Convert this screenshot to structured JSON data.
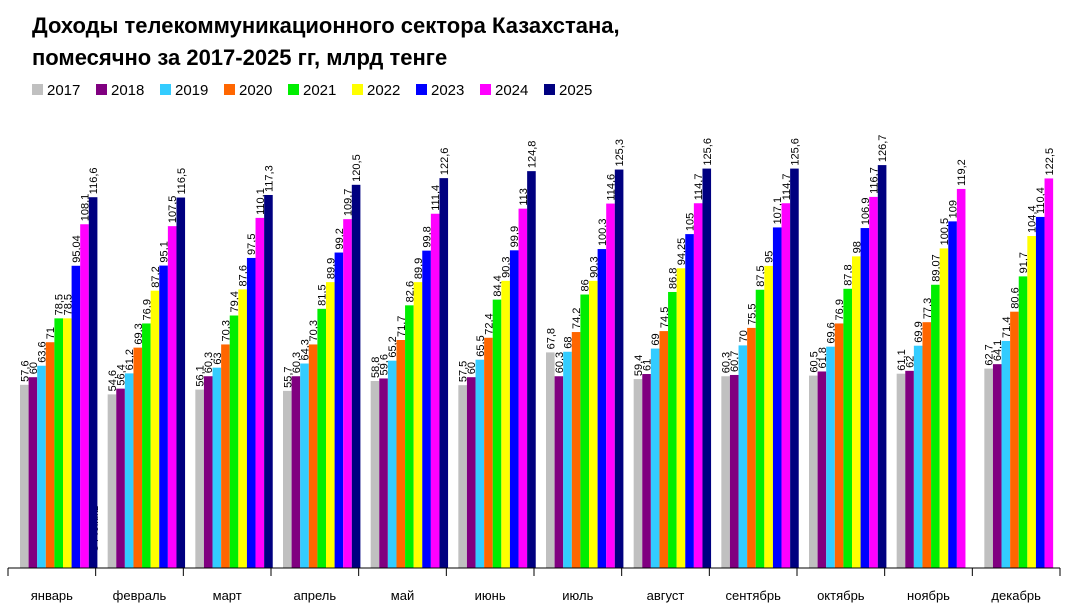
{
  "chart_data": {
    "type": "bar",
    "title": [
      "Доходы телекоммуникационного сектора Казахстана,",
      "помесячно за 2017-2025 гг, млрд тенге"
    ],
    "watermark": "© Profit.kz",
    "categories": [
      "январь",
      "февраль",
      "март",
      "апрель",
      "май",
      "июнь",
      "июль",
      "август",
      "сентябрь",
      "октябрь",
      "ноябрь",
      "декабрь"
    ],
    "series": [
      {
        "name": "2017",
        "color": "#c0c0c0",
        "values": [
          57.6,
          54.6,
          56.1,
          55.7,
          58.8,
          57.5,
          67.8,
          59.4,
          60.3,
          60.5,
          61.1,
          62.7
        ],
        "value_labels": [
          "57,6",
          "54,6",
          "56,1",
          "55,7",
          "58,8",
          "57,5",
          "67,8",
          "59,4",
          "60,3",
          "60,5",
          "61,1",
          "62,7"
        ]
      },
      {
        "name": "2018",
        "color": "#800080",
        "values": [
          60,
          56.4,
          60.3,
          60.3,
          59.6,
          60,
          60.3,
          61,
          60.7,
          61.8,
          62,
          64.1
        ],
        "value_labels": [
          "60",
          "56,4",
          "60,3",
          "60,3",
          "59,6",
          "60",
          "60,3",
          "61",
          "60,7",
          "61,8",
          "62",
          "64,1"
        ]
      },
      {
        "name": "2019",
        "color": "#33ccff",
        "values": [
          63.6,
          61.2,
          63,
          64.3,
          65.2,
          65.5,
          68,
          69,
          70,
          69.6,
          69.9,
          71.4
        ],
        "value_labels": [
          "63,6",
          "61,2",
          "63",
          "64,3",
          "65,2",
          "65,5",
          "68",
          "69",
          "70",
          "69,6",
          "69,9",
          "71,4"
        ]
      },
      {
        "name": "2020",
        "color": "#ff6600",
        "values": [
          71,
          69.3,
          70.3,
          70.3,
          71.7,
          72.4,
          74.2,
          74.5,
          75.5,
          76.9,
          77.3,
          80.6
        ],
        "value_labels": [
          "71",
          "69,3",
          "70,3",
          "70,3",
          "71,7",
          "72,4",
          "74,2",
          "74,5",
          "75,5",
          "76,9",
          "77,3",
          "80,6"
        ]
      },
      {
        "name": "2021",
        "color": "#00ee00",
        "values": [
          78.5,
          76.9,
          79.4,
          81.5,
          82.6,
          84.4,
          86,
          86.8,
          87.5,
          87.8,
          89.07,
          91.7
        ],
        "value_labels": [
          "78,5",
          "76,9",
          "79,4",
          "81,5",
          "82,6",
          "84,4",
          "86",
          "86,8",
          "87,5",
          "87,8",
          "89,07",
          "91,7"
        ]
      },
      {
        "name": "2022",
        "color": "#ffff00",
        "values": [
          78.5,
          87.2,
          87.6,
          89.9,
          89.9,
          90.3,
          90.3,
          94.25,
          95,
          98,
          100.5,
          104.4
        ],
        "value_labels": [
          "78,5",
          "87,2",
          "87,6",
          "89,9",
          "89,9",
          "90,3",
          "90,3",
          "94,25",
          "95",
          "98",
          "100,5",
          "104,4"
        ]
      },
      {
        "name": "2023",
        "color": "#0000ff",
        "values": [
          95.04,
          95.1,
          97.5,
          99.2,
          99.8,
          99.9,
          100.3,
          105,
          107.1,
          106.9,
          109,
          110.4
        ],
        "value_labels": [
          "95,04",
          "95,1",
          "97,5",
          "99,2",
          "99,8",
          "99,9",
          "100,3",
          "105",
          "107,1",
          "106,9",
          "109",
          "110,4"
        ]
      },
      {
        "name": "2024",
        "color": "#ff00ff",
        "values": [
          108.1,
          107.5,
          110.1,
          109.7,
          111.4,
          113,
          114.6,
          114.7,
          114.7,
          116.7,
          119.2,
          122.5
        ],
        "value_labels": [
          "108,1",
          "107,5",
          "110,1",
          "109,7",
          "111,4",
          "113",
          "114,6",
          "114,7",
          "114,7",
          "116,7",
          "119,2",
          "122,5"
        ]
      },
      {
        "name": "2025",
        "color": "#000080",
        "values": [
          116.6,
          116.5,
          117.3,
          120.5,
          122.6,
          124.8,
          125.3,
          125.6,
          125.6,
          126.7,
          null,
          null
        ],
        "value_labels": [
          "116,6",
          "116,5",
          "117,3",
          "120,5",
          "122,6",
          "124,8",
          "125,3",
          "125,6",
          "125,6",
          "126,7",
          null,
          null
        ]
      }
    ]
  }
}
